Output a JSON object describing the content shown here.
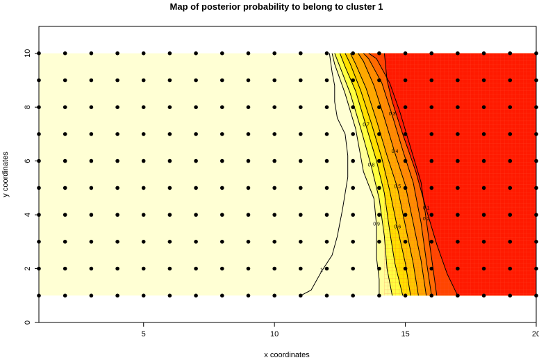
{
  "chart_data": {
    "type": "heatmap",
    "title": "Map of posterior probability to belong to cluster  1",
    "xlabel": "x coordinates",
    "ylabel": "y coordinates",
    "xlim": [
      1,
      20
    ],
    "ylim": [
      0,
      11
    ],
    "x_ticks": [
      5,
      10,
      15,
      20
    ],
    "y_ticks": [
      0,
      2,
      4,
      6,
      8,
      10
    ],
    "grid": false,
    "legend": "none",
    "colors": {
      "low": "#ffffd4",
      "mid_light": "#ffff40",
      "mid": "#ffc000",
      "mid_dark": "#ff8000",
      "high": "#ff1a00"
    },
    "points": {
      "x": [
        1,
        2,
        3,
        4,
        5,
        6,
        7,
        8,
        9,
        10,
        11,
        12,
        13,
        14,
        15,
        16,
        17,
        18,
        19,
        20
      ],
      "y": [
        1,
        2,
        3,
        4,
        5,
        6,
        7,
        8,
        9,
        10
      ]
    },
    "contours": [
      {
        "level": "1",
        "label": "1",
        "path": [
          [
            11.0,
            1.0
          ],
          [
            11.4,
            1.2
          ],
          [
            11.8,
            1.9
          ],
          [
            12.2,
            2.5
          ],
          [
            12.4,
            3.2
          ],
          [
            12.6,
            4.2
          ],
          [
            12.7,
            4.8
          ],
          [
            12.8,
            5.4
          ],
          [
            12.8,
            6.2
          ],
          [
            12.7,
            7.0
          ],
          [
            12.4,
            7.6
          ],
          [
            12.3,
            8.2
          ],
          [
            12.3,
            8.8
          ],
          [
            12.2,
            9.3
          ],
          [
            12.1,
            10.0
          ]
        ]
      },
      {
        "level": "0.9",
        "label": "0.9",
        "path": [
          [
            14.0,
            1.0
          ],
          [
            14.0,
            1.6
          ],
          [
            13.9,
            2.4
          ],
          [
            13.9,
            3.6
          ],
          [
            13.8,
            4.6
          ],
          [
            13.4,
            5.6
          ],
          [
            13.1,
            7.2
          ],
          [
            12.7,
            8.5
          ],
          [
            12.3,
            9.6
          ],
          [
            12.2,
            10.0
          ]
        ]
      },
      {
        "level": "0.8",
        "label": "0.8",
        "path": [
          [
            14.5,
            1.0
          ],
          [
            14.3,
            2.0
          ],
          [
            14.2,
            3.2
          ],
          [
            14.0,
            4.6
          ],
          [
            13.7,
            5.8
          ],
          [
            13.3,
            7.2
          ],
          [
            12.9,
            8.5
          ],
          [
            12.5,
            9.5
          ],
          [
            12.3,
            10.0
          ]
        ]
      },
      {
        "level": "0.7",
        "label": "0.7",
        "path": [
          [
            14.9,
            1.0
          ],
          [
            14.6,
            2.2
          ],
          [
            14.4,
            3.4
          ],
          [
            14.2,
            4.8
          ],
          [
            13.9,
            6.0
          ],
          [
            13.5,
            7.3
          ],
          [
            13.1,
            8.6
          ],
          [
            12.7,
            9.5
          ],
          [
            12.5,
            10.0
          ]
        ]
      },
      {
        "level": "0.6",
        "label": "0.6",
        "path": [
          [
            15.2,
            1.0
          ],
          [
            15.0,
            2.2
          ],
          [
            14.7,
            3.5
          ],
          [
            14.4,
            4.9
          ],
          [
            14.1,
            6.1
          ],
          [
            13.7,
            7.4
          ],
          [
            13.3,
            8.6
          ],
          [
            12.9,
            9.6
          ],
          [
            12.7,
            10.0
          ]
        ]
      },
      {
        "level": "0.5",
        "label": "0.5",
        "path": [
          [
            15.5,
            1.0
          ],
          [
            15.3,
            2.2
          ],
          [
            15.0,
            3.6
          ],
          [
            14.7,
            5.0
          ],
          [
            14.3,
            6.2
          ],
          [
            13.9,
            7.5
          ],
          [
            13.5,
            8.7
          ],
          [
            13.1,
            9.6
          ],
          [
            12.9,
            10.0
          ]
        ]
      },
      {
        "level": "0.4",
        "label": "0.4",
        "path": [
          [
            15.8,
            1.0
          ],
          [
            15.6,
            2.3
          ],
          [
            15.3,
            3.7
          ],
          [
            15.0,
            5.1
          ],
          [
            14.6,
            6.3
          ],
          [
            14.2,
            7.6
          ],
          [
            13.8,
            8.8
          ],
          [
            13.4,
            9.7
          ],
          [
            13.2,
            10.0
          ]
        ]
      },
      {
        "level": "0.3",
        "label": "0.3",
        "path": [
          [
            16.0,
            1.0
          ],
          [
            15.8,
            2.3
          ],
          [
            15.6,
            3.7
          ],
          [
            15.3,
            5.2
          ],
          [
            14.9,
            6.4
          ],
          [
            14.5,
            7.7
          ],
          [
            14.1,
            8.9
          ],
          [
            13.6,
            9.8
          ],
          [
            13.4,
            10.0
          ]
        ]
      },
      {
        "level": "0.2",
        "label": "0.2",
        "path": [
          [
            16.2,
            1.0
          ],
          [
            16.0,
            2.4
          ],
          [
            15.8,
            3.8
          ],
          [
            15.6,
            5.2
          ],
          [
            15.2,
            6.5
          ],
          [
            14.8,
            7.8
          ],
          [
            14.4,
            8.9
          ],
          [
            13.9,
            9.8
          ],
          [
            13.6,
            10.0
          ]
        ]
      },
      {
        "level": "0.1",
        "label": "0.1",
        "path": [
          [
            17.0,
            1.0
          ],
          [
            16.6,
            1.8
          ],
          [
            16.2,
            2.9
          ],
          [
            15.8,
            4.2
          ],
          [
            15.4,
            5.6
          ],
          [
            14.9,
            7.0
          ],
          [
            14.5,
            8.2
          ],
          [
            14.3,
            9.0
          ],
          [
            14.2,
            10.0
          ]
        ]
      }
    ]
  }
}
